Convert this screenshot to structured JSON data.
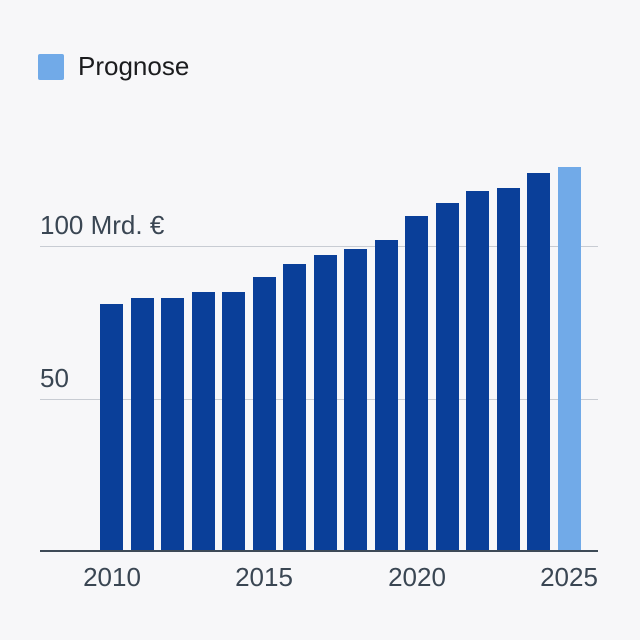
{
  "background_color": "#f7f7f9",
  "legend": {
    "label": "Prognose",
    "swatch_color": "#71aae8"
  },
  "chart_data": {
    "type": "bar",
    "title": "",
    "unit": "Mrd. €",
    "categories": [
      "2010",
      "2011",
      "2012",
      "2013",
      "2014",
      "2015",
      "2016",
      "2017",
      "2018",
      "2019",
      "2020",
      "2021",
      "2022",
      "2023",
      "2024",
      "2025"
    ],
    "values": [
      81,
      83,
      83,
      85,
      85,
      90,
      94,
      97,
      99,
      102,
      110,
      114,
      118,
      119,
      124,
      126
    ],
    "forecast_categories": [
      "2025"
    ],
    "gridlines": [
      {
        "value": 50,
        "label": "50"
      },
      {
        "value": 100,
        "label": "100 Mrd. €"
      }
    ],
    "x_tick_categories": [
      "2010",
      "2015",
      "2020",
      "2025"
    ],
    "ylim": [
      0,
      130
    ],
    "grid": true,
    "legend_position": "top-left",
    "colors": {
      "bar": "#0a3f99",
      "forecast": "#71aae8",
      "gridline": "#c8ccd3",
      "axis_line": "#3e4a57",
      "axis_text": "#3a4653"
    }
  }
}
